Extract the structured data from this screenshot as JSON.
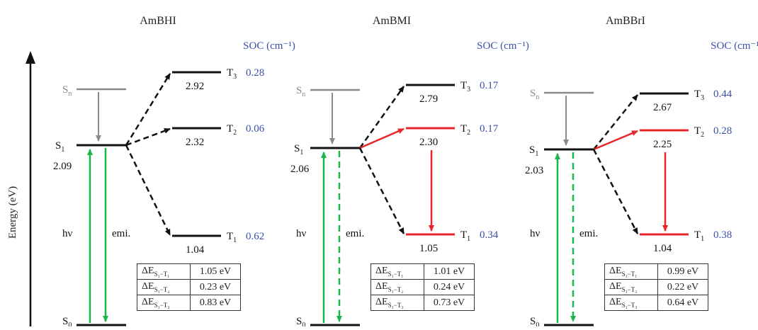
{
  "y_axis_label": "Energy (eV)",
  "soc_header": "SOC (cm⁻¹)",
  "colors": {
    "black": "#111111",
    "gray": "#8a8a8a",
    "red": "#e8252a",
    "green": "#1bb54a",
    "blue": "#3b4fa8"
  },
  "panels": [
    {
      "title": "AmBHI",
      "s1_value": "2.09",
      "hv_label": "hν",
      "emi_label": "emi.",
      "emission_dashed": false,
      "t_levels": [
        {
          "label": "3",
          "value": "2.92",
          "soc": "0.28",
          "red": false
        },
        {
          "label": "2",
          "value": "2.32",
          "soc": "0.06",
          "red": false
        },
        {
          "label": "1",
          "value": "1.04",
          "soc": "0.62",
          "red": false
        }
      ],
      "isc_red_to_t2": false,
      "table": [
        {
          "sub": "S₁−T₁",
          "value": "1.05 eV"
        },
        {
          "sub": "S₁−T₂",
          "value": "0.23 eV"
        },
        {
          "sub": "S₁−T₃",
          "value": "0.83 eV"
        }
      ]
    },
    {
      "title": "AmBMI",
      "s1_value": "2.06",
      "hv_label": "hν",
      "emi_label": "emi.",
      "emission_dashed": true,
      "t_levels": [
        {
          "label": "3",
          "value": "2.79",
          "soc": "0.17",
          "red": false
        },
        {
          "label": "2",
          "value": "2.30",
          "soc": "0.17",
          "red": true
        },
        {
          "label": "1",
          "value": "1.05",
          "soc": "0.34",
          "red": true
        }
      ],
      "isc_red_to_t2": true,
      "table": [
        {
          "sub": "S₁−T₁",
          "value": "1.01 eV"
        },
        {
          "sub": "S₁−T₂",
          "value": "0.24 eV"
        },
        {
          "sub": "S₁−T₃",
          "value": "0.73 eV"
        }
      ]
    },
    {
      "title": "AmBBrI",
      "s1_value": "2.03",
      "hv_label": "hν",
      "emi_label": "emi.",
      "emission_dashed": true,
      "t_levels": [
        {
          "label": "3",
          "value": "2.67",
          "soc": "0.44",
          "red": false
        },
        {
          "label": "2",
          "value": "2.25",
          "soc": "0.28",
          "red": true
        },
        {
          "label": "1",
          "value": "1.04",
          "soc": "0.38",
          "red": true
        }
      ],
      "isc_red_to_t2": true,
      "table": [
        {
          "sub": "S₁−T₁",
          "value": "0.99 eV"
        },
        {
          "sub": "S₁−T₂",
          "value": "0.22 eV"
        },
        {
          "sub": "S₁−T₃",
          "value": "0.64 eV"
        }
      ]
    }
  ]
}
